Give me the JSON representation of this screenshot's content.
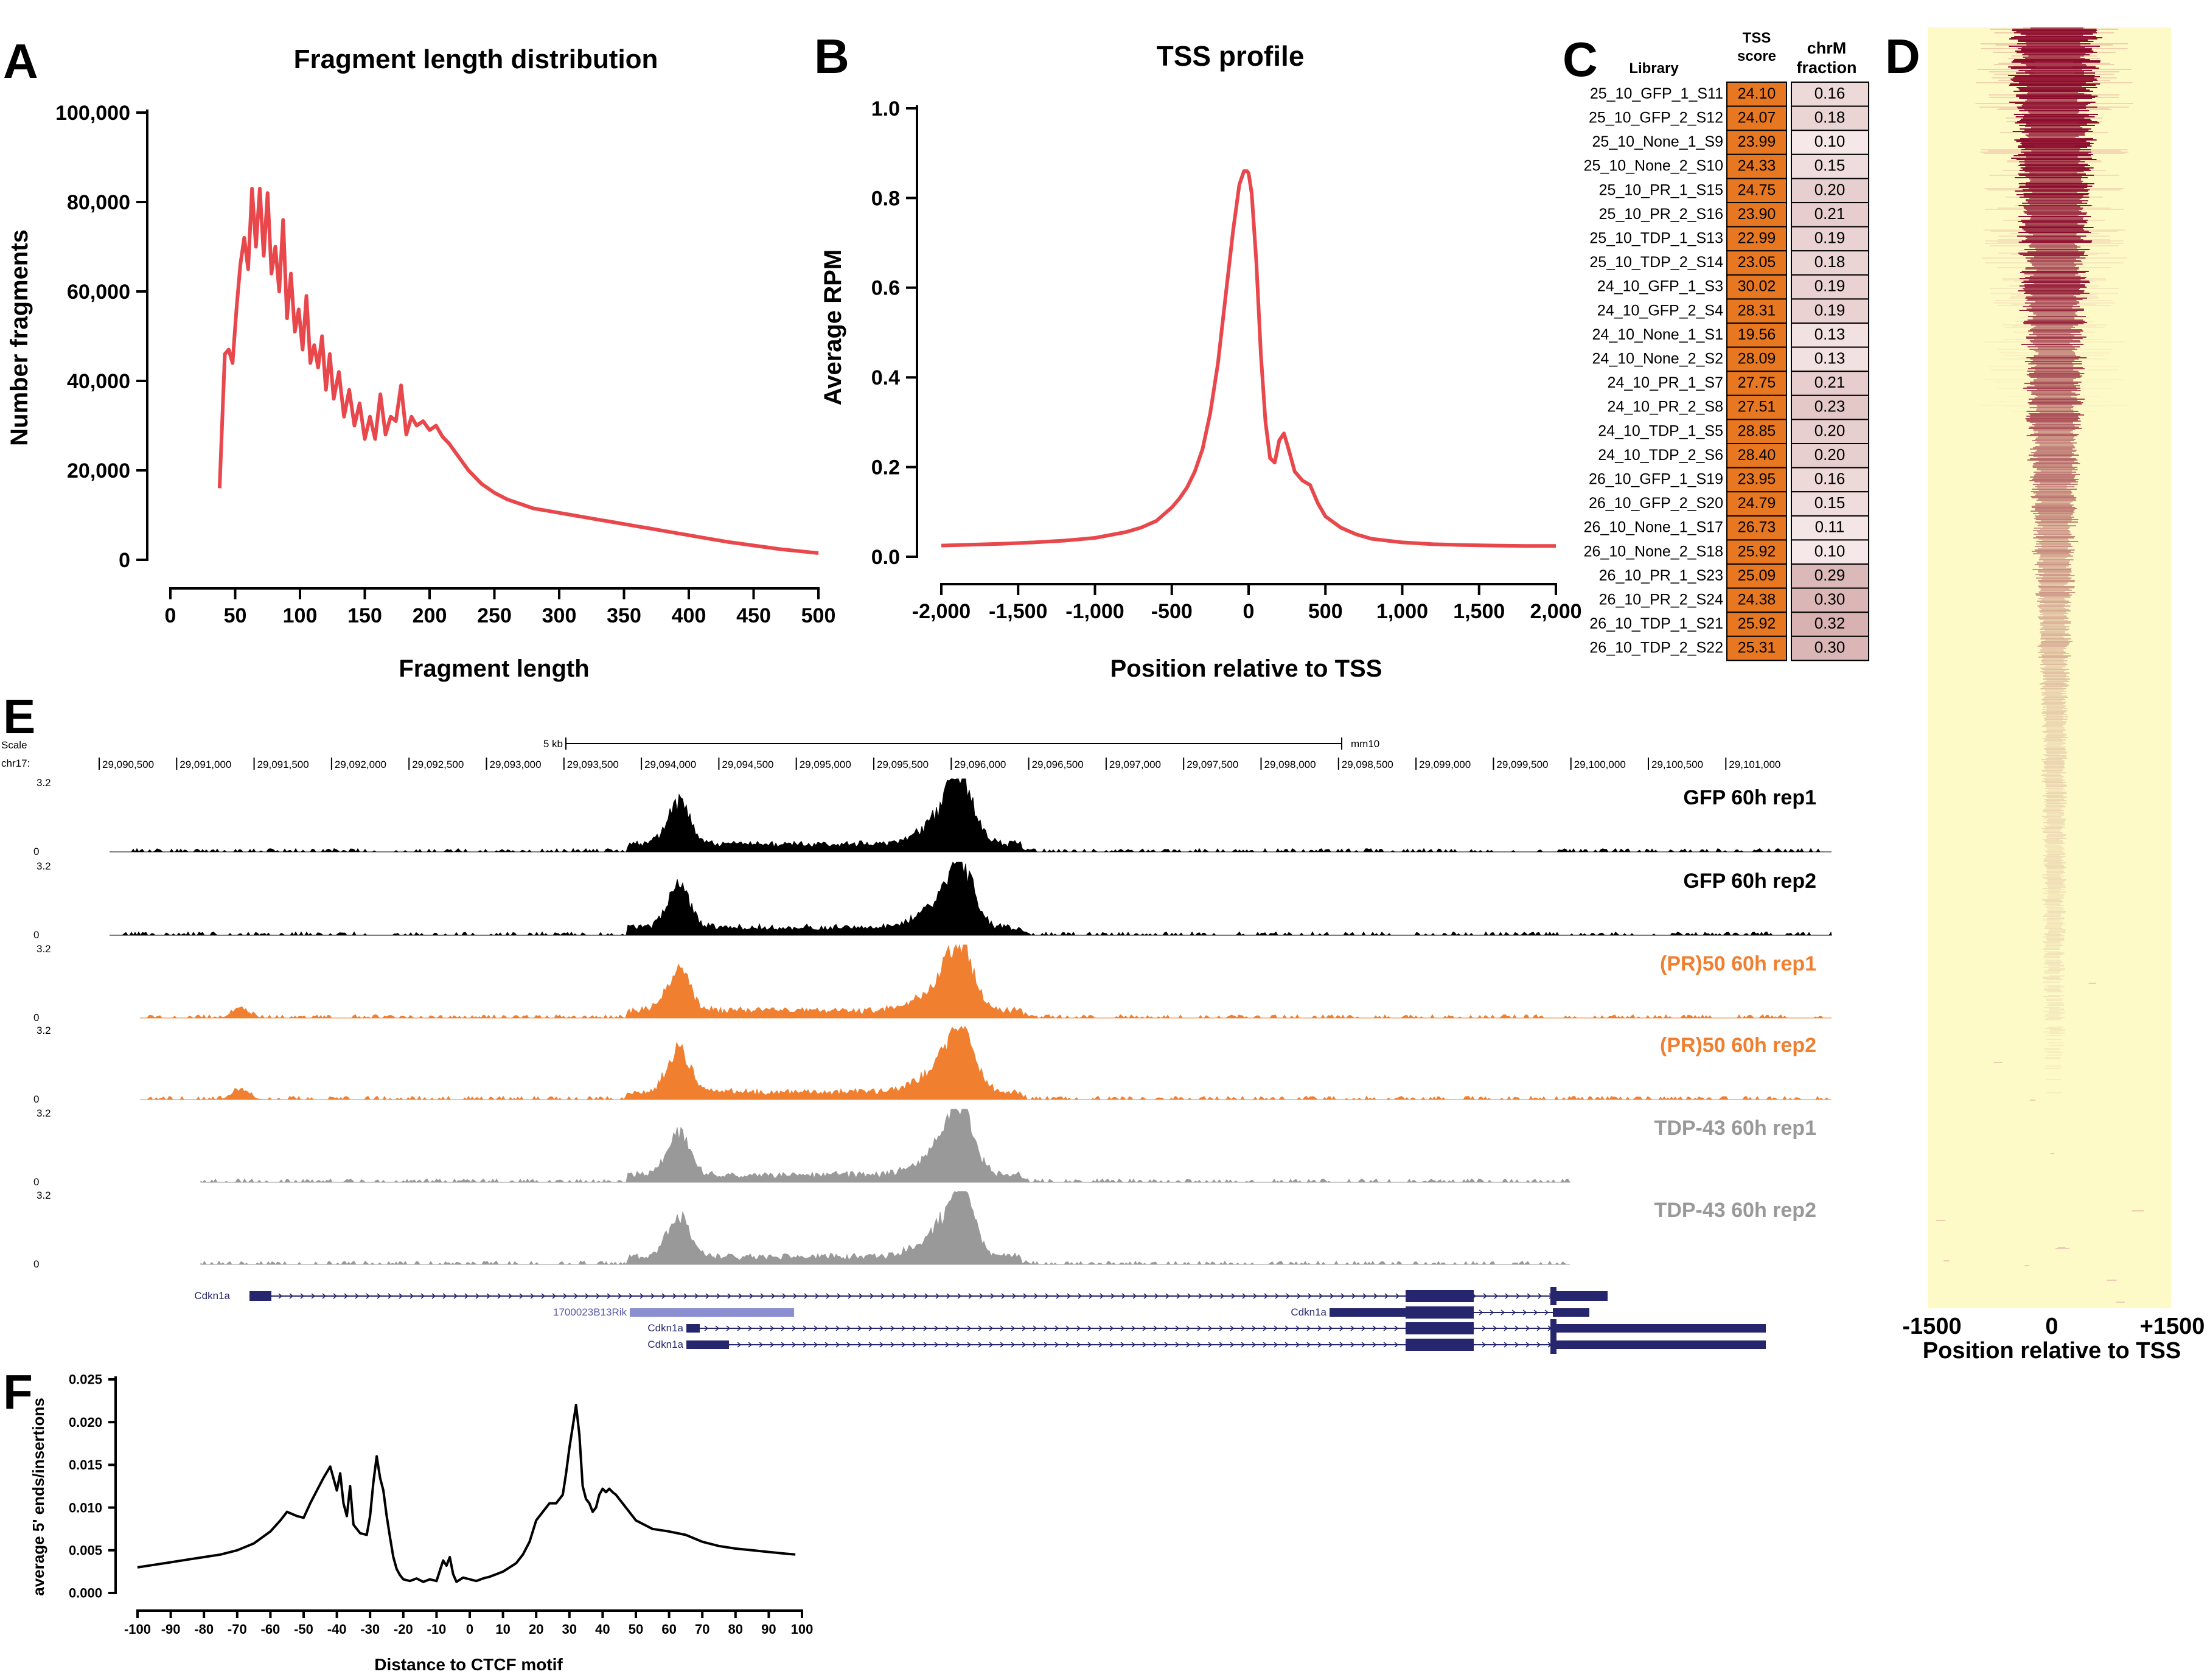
{
  "panels": {
    "A": {
      "letter": "A",
      "chart_data": {
        "type": "line",
        "title": "Fragment length distribution",
        "xlabel": "Fragment length",
        "ylabel": "Number fragments",
        "xlim": [
          0,
          500
        ],
        "ylim": [
          0,
          100000
        ],
        "xticks": [
          0,
          50,
          100,
          150,
          200,
          250,
          300,
          350,
          400,
          450,
          500
        ],
        "yticks": [
          0,
          20000,
          40000,
          60000,
          80000,
          100000
        ],
        "ytick_labels": [
          "0",
          "20,000",
          "40,000",
          "60,000",
          "80,000",
          "100,000"
        ],
        "color": "#e8474c",
        "x": [
          38,
          42,
          45,
          48,
          51,
          54,
          57,
          60,
          63,
          66,
          69,
          72,
          75,
          78,
          81,
          84,
          87,
          90,
          93,
          96,
          99,
          102,
          105,
          108,
          111,
          114,
          117,
          120,
          123,
          126,
          130,
          134,
          138,
          142,
          146,
          150,
          154,
          158,
          162,
          166,
          170,
          174,
          178,
          182,
          186,
          190,
          195,
          200,
          205,
          210,
          215,
          220,
          230,
          240,
          250,
          260,
          270,
          280,
          290,
          300,
          310,
          320,
          330,
          340,
          350,
          360,
          370,
          380,
          390,
          400,
          410,
          420,
          430,
          440,
          450,
          460,
          470,
          480,
          490,
          500
        ],
        "y": [
          16000,
          46000,
          47000,
          44000,
          56000,
          66000,
          72000,
          65000,
          83000,
          70000,
          83000,
          68000,
          82000,
          64000,
          70000,
          60000,
          76000,
          54000,
          64000,
          51000,
          56000,
          47000,
          59000,
          44000,
          48000,
          43000,
          50000,
          38000,
          46000,
          36000,
          42000,
          32000,
          38000,
          30000,
          35000,
          27000,
          32000,
          27000,
          37000,
          28000,
          32000,
          31000,
          39000,
          28000,
          32000,
          30000,
          31000,
          29000,
          30000,
          27500,
          26000,
          24000,
          20000,
          17000,
          15000,
          13500,
          12500,
          11500,
          11000,
          10500,
          10000,
          9500,
          9000,
          8500,
          8000,
          7500,
          7000,
          6500,
          6000,
          5500,
          5000,
          4500,
          4000,
          3600,
          3200,
          2800,
          2400,
          2100,
          1800,
          1500
        ]
      }
    },
    "B": {
      "letter": "B",
      "chart_data": {
        "type": "line",
        "title": "TSS profile",
        "xlabel": "Position relative to TSS",
        "ylabel": "Average RPM",
        "xlim": [
          -2000,
          2000
        ],
        "ylim": [
          0,
          1.0
        ],
        "xticks": [
          -2000,
          -1500,
          -1000,
          -500,
          0,
          500,
          1000,
          1500,
          2000
        ],
        "xtick_labels": [
          "-2,000",
          "-1,500",
          "-1,000",
          "-500",
          "0",
          "500",
          "1,000",
          "1,500",
          "2,000"
        ],
        "yticks": [
          0,
          0.2,
          0.4,
          0.6,
          0.8,
          1.0
        ],
        "ytick_labels": [
          "0.0",
          "0.2",
          "0.4",
          "0.6",
          "0.8",
          "1.0"
        ],
        "color": "#e8474c",
        "x": [
          -2000,
          -1800,
          -1600,
          -1400,
          -1200,
          -1000,
          -800,
          -700,
          -600,
          -500,
          -450,
          -400,
          -350,
          -300,
          -250,
          -200,
          -150,
          -100,
          -60,
          -30,
          -10,
          0,
          20,
          50,
          80,
          110,
          140,
          170,
          200,
          230,
          260,
          300,
          350,
          400,
          450,
          500,
          600,
          700,
          800,
          1000,
          1200,
          1400,
          1600,
          1800,
          2000
        ],
        "y": [
          0.025,
          0.027,
          0.029,
          0.032,
          0.036,
          0.042,
          0.055,
          0.065,
          0.08,
          0.11,
          0.13,
          0.155,
          0.19,
          0.24,
          0.32,
          0.43,
          0.58,
          0.73,
          0.83,
          0.86,
          0.86,
          0.855,
          0.81,
          0.66,
          0.45,
          0.3,
          0.22,
          0.21,
          0.26,
          0.275,
          0.24,
          0.19,
          0.17,
          0.16,
          0.12,
          0.09,
          0.065,
          0.05,
          0.04,
          0.032,
          0.028,
          0.026,
          0.025,
          0.024,
          0.024
        ]
      }
    },
    "C": {
      "letter": "C",
      "headers": {
        "library": "Library",
        "tss_line1": "TSS",
        "tss_line2": "score",
        "chrm_line1": "chrM",
        "chrm_line2": "fraction"
      },
      "tss_color": "#e87722",
      "chrm_color_low": "#f6e8e8",
      "chrm_color_high": "#d8b1b1",
      "rows": [
        {
          "library": "25_10_GFP_1_S11",
          "tss": "24.10",
          "chrm": "0.16"
        },
        {
          "library": "25_10_GFP_2_S12",
          "tss": "24.07",
          "chrm": "0.18"
        },
        {
          "library": "25_10_None_1_S9",
          "tss": "23.99",
          "chrm": "0.10"
        },
        {
          "library": "25_10_None_2_S10",
          "tss": "24.33",
          "chrm": "0.15"
        },
        {
          "library": "25_10_PR_1_S15",
          "tss": "24.75",
          "chrm": "0.20"
        },
        {
          "library": "25_10_PR_2_S16",
          "tss": "23.90",
          "chrm": "0.21"
        },
        {
          "library": "25_10_TDP_1_S13",
          "tss": "22.99",
          "chrm": "0.19"
        },
        {
          "library": "25_10_TDP_2_S14",
          "tss": "23.05",
          "chrm": "0.18"
        },
        {
          "library": "24_10_GFP_1_S3",
          "tss": "30.02",
          "chrm": "0.19"
        },
        {
          "library": "24_10_GFP_2_S4",
          "tss": "28.31",
          "chrm": "0.19"
        },
        {
          "library": "24_10_None_1_S1",
          "tss": "19.56",
          "chrm": "0.13"
        },
        {
          "library": "24_10_None_2_S2",
          "tss": "28.09",
          "chrm": "0.13"
        },
        {
          "library": "24_10_PR_1_S7",
          "tss": "27.75",
          "chrm": "0.21"
        },
        {
          "library": "24_10_PR_2_S8",
          "tss": "27.51",
          "chrm": "0.23"
        },
        {
          "library": "24_10_TDP_1_S5",
          "tss": "28.85",
          "chrm": "0.20"
        },
        {
          "library": "24_10_TDP_2_S6",
          "tss": "28.40",
          "chrm": "0.20"
        },
        {
          "library": "26_10_GFP_1_S19",
          "tss": "23.95",
          "chrm": "0.16"
        },
        {
          "library": "26_10_GFP_2_S20",
          "tss": "24.79",
          "chrm": "0.15"
        },
        {
          "library": "26_10_None_1_S17",
          "tss": "26.73",
          "chrm": "0.11"
        },
        {
          "library": "26_10_None_2_S18",
          "tss": "25.92",
          "chrm": "0.10"
        },
        {
          "library": "26_10_PR_1_S23",
          "tss": "25.09",
          "chrm": "0.29"
        },
        {
          "library": "26_10_PR_2_S24",
          "tss": "24.38",
          "chrm": "0.30"
        },
        {
          "library": "26_10_TDP_1_S21",
          "tss": "25.92",
          "chrm": "0.32"
        },
        {
          "library": "26_10_TDP_2_S22",
          "tss": "25.31",
          "chrm": "0.30"
        }
      ]
    },
    "D": {
      "letter": "D",
      "chart_data": {
        "type": "heatmap",
        "xlabel": "Position relative to TSS",
        "xtick_labels": [
          "-1500",
          "0",
          "+1500"
        ],
        "xlim": [
          -1500,
          1500
        ],
        "background_color": "#fdfac8",
        "signal_color": "#8a0d2e"
      }
    },
    "E": {
      "letter": "E",
      "scale_label": "Scale",
      "scale_bar": "5 kb",
      "assembly": "mm10",
      "chrom": "chr17:",
      "positions": [
        "29,090,500",
        "29,091,000",
        "29,091,500",
        "29,092,000",
        "29,092,500",
        "29,093,000",
        "29,093,500",
        "29,094,000",
        "29,094,500",
        "29,095,000",
        "29,095,500",
        "29,096,000",
        "29,096,500",
        "29,097,000",
        "29,097,500",
        "29,098,000",
        "29,098,500",
        "29,099,000",
        "29,099,500",
        "29,100,000",
        "29,100,500",
        "29,101,000"
      ],
      "track_max": "3.2",
      "track_min": "0",
      "tracks": [
        {
          "name": "GFP 60h rep1",
          "color": "#000000"
        },
        {
          "name": "GFP 60h rep2",
          "color": "#000000"
        },
        {
          "name": "(PR)50 60h rep1",
          "color": "#f07f30"
        },
        {
          "name": "(PR)50 60h rep2",
          "color": "#f07f30"
        },
        {
          "name": "TDP-43 60h rep1",
          "color": "#999999"
        },
        {
          "name": "TDP-43 60h rep2",
          "color": "#999999"
        }
      ],
      "genes": [
        "Cdkn1a",
        "1700023B13Rik",
        "Cdkn1a",
        "Cdkn1a",
        "Cdkn1a"
      ],
      "gene_color": "#25266e"
    },
    "F": {
      "letter": "F",
      "chart_data": {
        "type": "line",
        "xlabel": "Distance to CTCF motif",
        "ylabel": "average 5' ends/insertions",
        "xlim": [
          -100,
          100
        ],
        "ylim": [
          0,
          0.025
        ],
        "xticks": [
          -100,
          -90,
          -80,
          -70,
          -60,
          -50,
          -40,
          -30,
          -20,
          -10,
          0,
          10,
          20,
          30,
          40,
          50,
          60,
          70,
          80,
          90,
          100
        ],
        "yticks": [
          0,
          0.005,
          0.01,
          0.015,
          0.02,
          0.025
        ],
        "ytick_labels": [
          "0.000",
          "0.005",
          "0.010",
          "0.015",
          "0.020",
          "0.025"
        ],
        "color": "#000000",
        "x": [
          -100,
          -95,
          -90,
          -85,
          -80,
          -75,
          -70,
          -65,
          -60,
          -57,
          -55,
          -52,
          -50,
          -48,
          -46,
          -44,
          -42,
          -40,
          -39,
          -38,
          -37,
          -36,
          -35,
          -33,
          -31,
          -30,
          -29,
          -28,
          -27,
          -26,
          -25,
          -24,
          -23,
          -22,
          -21,
          -20,
          -18,
          -16,
          -14,
          -12,
          -10,
          -8,
          -7,
          -6,
          -5,
          -4,
          -2,
          0,
          2,
          4,
          6,
          8,
          10,
          12,
          14,
          16,
          18,
          20,
          22,
          24,
          26,
          28,
          29,
          30,
          31,
          32,
          33,
          34,
          35,
          36,
          37,
          38,
          39,
          40,
          41,
          42,
          43,
          44,
          46,
          48,
          50,
          55,
          60,
          65,
          70,
          75,
          80,
          85,
          90,
          95,
          98
        ],
        "y": [
          0.003,
          0.0033,
          0.0036,
          0.0039,
          0.0042,
          0.0045,
          0.005,
          0.0058,
          0.0072,
          0.0085,
          0.0095,
          0.009,
          0.0088,
          0.0105,
          0.012,
          0.0135,
          0.0148,
          0.012,
          0.014,
          0.0105,
          0.009,
          0.0125,
          0.008,
          0.007,
          0.0068,
          0.009,
          0.013,
          0.016,
          0.0135,
          0.012,
          0.009,
          0.0065,
          0.0042,
          0.0028,
          0.0021,
          0.0016,
          0.0014,
          0.0017,
          0.0013,
          0.0016,
          0.0014,
          0.0038,
          0.0032,
          0.0042,
          0.0022,
          0.0013,
          0.0018,
          0.0016,
          0.0014,
          0.0017,
          0.0019,
          0.0022,
          0.0025,
          0.003,
          0.0035,
          0.0045,
          0.006,
          0.0085,
          0.0095,
          0.0105,
          0.0105,
          0.0115,
          0.014,
          0.017,
          0.0195,
          0.022,
          0.0185,
          0.0125,
          0.011,
          0.0105,
          0.0095,
          0.01,
          0.0115,
          0.0122,
          0.0118,
          0.0122,
          0.0118,
          0.0115,
          0.0105,
          0.0095,
          0.0085,
          0.0075,
          0.0072,
          0.0068,
          0.006,
          0.0055,
          0.0052,
          0.005,
          0.0048,
          0.0046,
          0.0045
        ]
      }
    }
  }
}
